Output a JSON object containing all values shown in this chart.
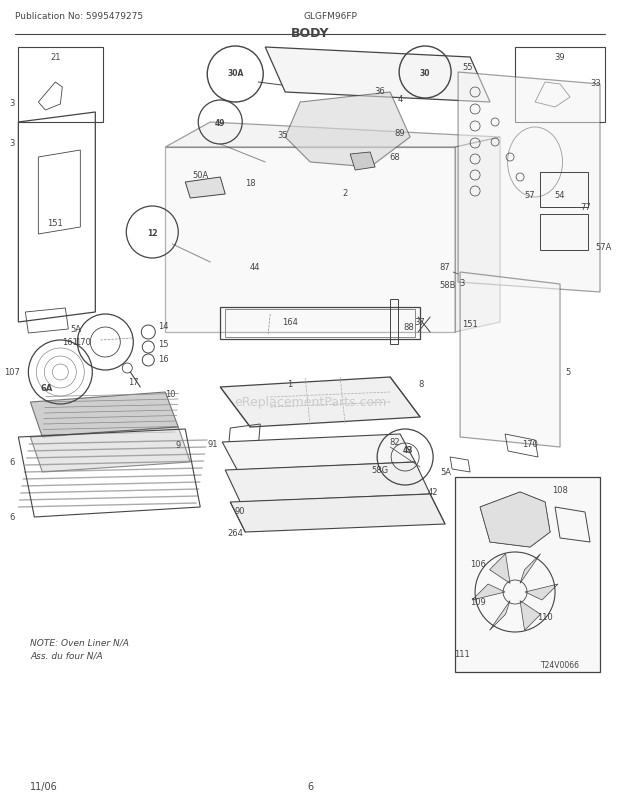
{
  "title": "BODY",
  "subtitle_left": "Publication No: 5995479275",
  "subtitle_center": "GLGFM96FP",
  "footer_left": "11/06",
  "footer_center": "6",
  "watermark": "eReplacementParts.com",
  "note_line1": "NOTE: Oven Liner N/A",
  "note_line2": "Ass. du four N/A",
  "diagram_ref": "T24V0066",
  "bg_color": "#ffffff",
  "lc": "#444444",
  "gray1": "#aaaaaa",
  "gray2": "#cccccc",
  "gray3": "#888888"
}
